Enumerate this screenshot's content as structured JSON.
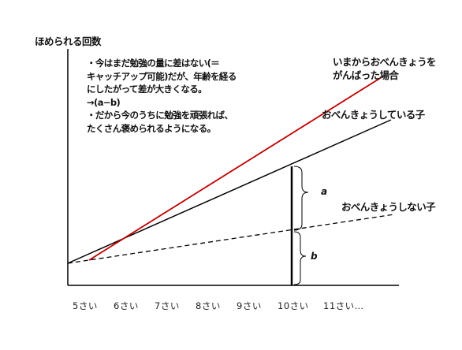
{
  "diagram": {
    "y_axis_label": "ほめられる回数",
    "note_lines": [
      "・今はまだ勉強の量に差はない(＝",
      "キャッチアップ可能)だが、年齢を経る",
      "にしたがって差が大きくなる。",
      "→(a−b)",
      "・だから今のうちに勉強を頑張れば、",
      "たくさん褒められるようになる。"
    ],
    "line_labels": {
      "red": [
        "いまからおべんきょうを",
        "がんばった場合"
      ],
      "black": "おべんきょうしている子",
      "dashed": "おべんきょうしない子"
    },
    "brace_labels": {
      "upper": "a",
      "lower": "b"
    },
    "x_ticks": [
      "5さい",
      "6さい",
      "7さい",
      "8さい",
      "9さい",
      "10さい",
      "11さい…"
    ],
    "colors": {
      "red_line": "#c00000",
      "black_line": "#000000",
      "dashed_line": "#000000",
      "axis": "#000000"
    }
  }
}
